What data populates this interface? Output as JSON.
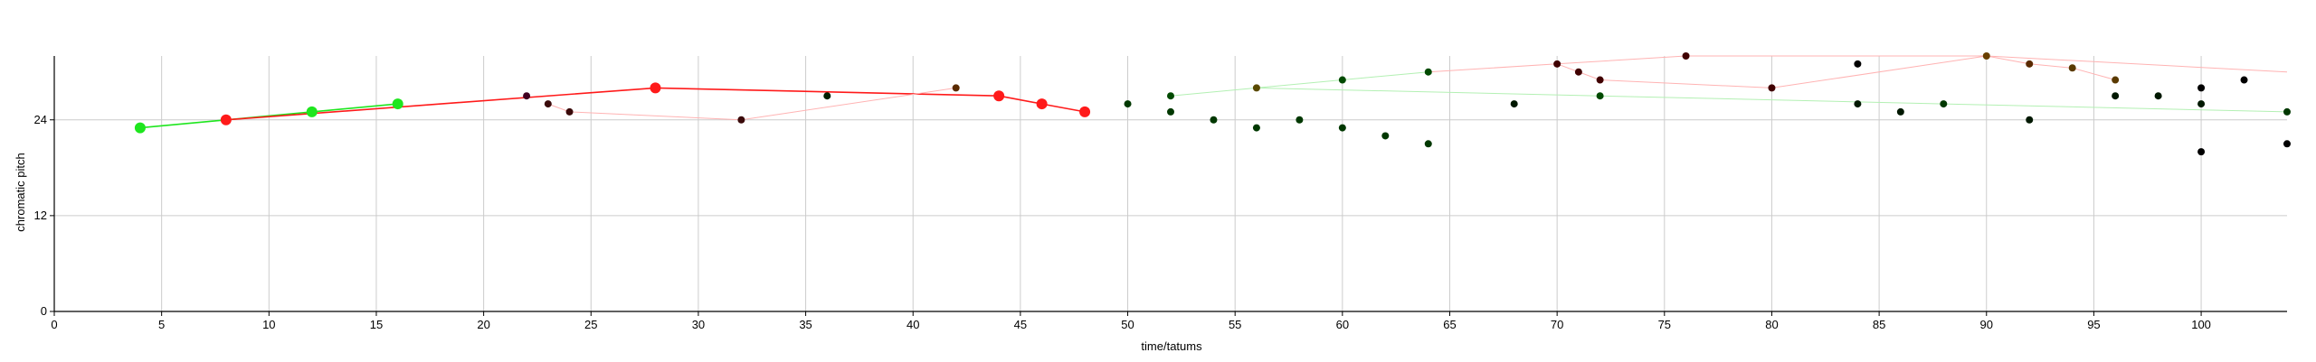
{
  "chart_data": {
    "type": "scatter",
    "title": "",
    "xlabel": "time/tatums",
    "ylabel": "chromatic pitch",
    "xlim": [
      0,
      104
    ],
    "ylim": [
      0,
      32
    ],
    "xticks": [
      0,
      5,
      10,
      15,
      20,
      25,
      30,
      35,
      40,
      45,
      50,
      55,
      60,
      65,
      70,
      75,
      80,
      85,
      90,
      95,
      100
    ],
    "yticks": [
      0,
      12,
      24
    ],
    "grid": true,
    "colors": {
      "red": "#ff1a1a",
      "green": "#1ee61e",
      "dark": "#000000",
      "faint_red": "#ffb3b3",
      "faint_green": "#b3f0b3"
    },
    "lines": [
      {
        "color": "#1ee61e",
        "width": 1.6,
        "points": [
          [
            4,
            23
          ],
          [
            8,
            24
          ],
          [
            12,
            25
          ],
          [
            16,
            26
          ]
        ]
      },
      {
        "color": "#ff1a1a",
        "width": 1.6,
        "points": [
          [
            8,
            24
          ],
          [
            28,
            28
          ],
          [
            44,
            27
          ],
          [
            46,
            26
          ],
          [
            48,
            25
          ]
        ]
      },
      {
        "color": "#ffb3b3",
        "width": 1,
        "points": [
          [
            23,
            26
          ],
          [
            24,
            25
          ],
          [
            32,
            24
          ],
          [
            42,
            28
          ]
        ]
      },
      {
        "color": "#b3f0b3",
        "width": 1,
        "points": [
          [
            52,
            27
          ],
          [
            56,
            28
          ],
          [
            60,
            29
          ],
          [
            64,
            30
          ]
        ]
      },
      {
        "color": "#b3f0b3",
        "width": 1,
        "points": [
          [
            56,
            28
          ],
          [
            104,
            25
          ]
        ]
      },
      {
        "color": "#ffb3b3",
        "width": 1,
        "points": [
          [
            64,
            30
          ],
          [
            70,
            31
          ],
          [
            76,
            32
          ],
          [
            90,
            32
          ],
          [
            104,
            30
          ]
        ]
      },
      {
        "color": "#ffb3b3",
        "width": 1,
        "points": [
          [
            70,
            31
          ],
          [
            72,
            29
          ],
          [
            80,
            28
          ],
          [
            90,
            32
          ],
          [
            92,
            31
          ],
          [
            94,
            30.5
          ],
          [
            96,
            29
          ]
        ]
      }
    ],
    "points": [
      {
        "x": 4,
        "y": 23,
        "color": "#1ee61e",
        "size": "large"
      },
      {
        "x": 8,
        "y": 24,
        "color": "#ff1a1a",
        "size": "large"
      },
      {
        "x": 12,
        "y": 25,
        "color": "#1ee61e",
        "size": "large"
      },
      {
        "x": 16,
        "y": 26,
        "color": "#1ee61e",
        "size": "large"
      },
      {
        "x": 28,
        "y": 28,
        "color": "#ff1a1a",
        "size": "large"
      },
      {
        "x": 44,
        "y": 27,
        "color": "#ff1a1a",
        "size": "large"
      },
      {
        "x": 46,
        "y": 26,
        "color": "#ff1a1a",
        "size": "large"
      },
      {
        "x": 48,
        "y": 25,
        "color": "#ff1a1a",
        "size": "large"
      },
      {
        "x": 22,
        "y": 27,
        "color": "#400020",
        "size": "small"
      },
      {
        "x": 23,
        "y": 26,
        "color": "#3a0a0a",
        "size": "small"
      },
      {
        "x": 24,
        "y": 25,
        "color": "#3a0a0a",
        "size": "small"
      },
      {
        "x": 32,
        "y": 24,
        "color": "#3a0a0a",
        "size": "small"
      },
      {
        "x": 36,
        "y": 27,
        "color": "#002000",
        "size": "small"
      },
      {
        "x": 42,
        "y": 28,
        "color": "#5a2a00",
        "size": "small"
      },
      {
        "x": 50,
        "y": 26,
        "color": "#003800",
        "size": "small"
      },
      {
        "x": 52,
        "y": 27,
        "color": "#004a00",
        "size": "small"
      },
      {
        "x": 52,
        "y": 25,
        "color": "#003800",
        "size": "small"
      },
      {
        "x": 54,
        "y": 24,
        "color": "#003800",
        "size": "small"
      },
      {
        "x": 56,
        "y": 28,
        "color": "#5a4a00",
        "size": "small"
      },
      {
        "x": 56,
        "y": 23,
        "color": "#003800",
        "size": "small"
      },
      {
        "x": 58,
        "y": 24,
        "color": "#003800",
        "size": "small"
      },
      {
        "x": 60,
        "y": 29,
        "color": "#004a00",
        "size": "small"
      },
      {
        "x": 60,
        "y": 23,
        "color": "#003800",
        "size": "small"
      },
      {
        "x": 62,
        "y": 22,
        "color": "#003800",
        "size": "small"
      },
      {
        "x": 64,
        "y": 30,
        "color": "#004a00",
        "size": "small"
      },
      {
        "x": 64,
        "y": 21,
        "color": "#003800",
        "size": "small"
      },
      {
        "x": 68,
        "y": 26,
        "color": "#001800",
        "size": "small"
      },
      {
        "x": 70,
        "y": 31,
        "color": "#400000",
        "size": "small"
      },
      {
        "x": 71,
        "y": 30,
        "color": "#400000",
        "size": "small"
      },
      {
        "x": 72,
        "y": 29,
        "color": "#400000",
        "size": "small"
      },
      {
        "x": 72,
        "y": 27,
        "color": "#004a00",
        "size": "small"
      },
      {
        "x": 76,
        "y": 32,
        "color": "#400000",
        "size": "small"
      },
      {
        "x": 80,
        "y": 28,
        "color": "#400000",
        "size": "small"
      },
      {
        "x": 84,
        "y": 31,
        "color": "#000000",
        "size": "small"
      },
      {
        "x": 84,
        "y": 26,
        "color": "#001800",
        "size": "small"
      },
      {
        "x": 86,
        "y": 25,
        "color": "#001800",
        "size": "small"
      },
      {
        "x": 88,
        "y": 26,
        "color": "#003800",
        "size": "small"
      },
      {
        "x": 90,
        "y": 32,
        "color": "#6a4000",
        "size": "small"
      },
      {
        "x": 92,
        "y": 31,
        "color": "#5a2a00",
        "size": "small"
      },
      {
        "x": 92,
        "y": 24,
        "color": "#001800",
        "size": "small"
      },
      {
        "x": 94,
        "y": 30.5,
        "color": "#5a3a00",
        "size": "small"
      },
      {
        "x": 96,
        "y": 29,
        "color": "#5a3a00",
        "size": "small"
      },
      {
        "x": 96,
        "y": 27,
        "color": "#001800",
        "size": "small"
      },
      {
        "x": 98,
        "y": 27,
        "color": "#001800",
        "size": "small"
      },
      {
        "x": 100,
        "y": 28,
        "color": "#000000",
        "size": "small"
      },
      {
        "x": 100,
        "y": 26,
        "color": "#001800",
        "size": "small"
      },
      {
        "x": 100,
        "y": 20,
        "color": "#000000",
        "size": "small"
      },
      {
        "x": 102,
        "y": 29,
        "color": "#000000",
        "size": "small"
      },
      {
        "x": 104,
        "y": 25,
        "color": "#003800",
        "size": "small"
      },
      {
        "x": 104,
        "y": 21,
        "color": "#000000",
        "size": "small"
      }
    ]
  }
}
